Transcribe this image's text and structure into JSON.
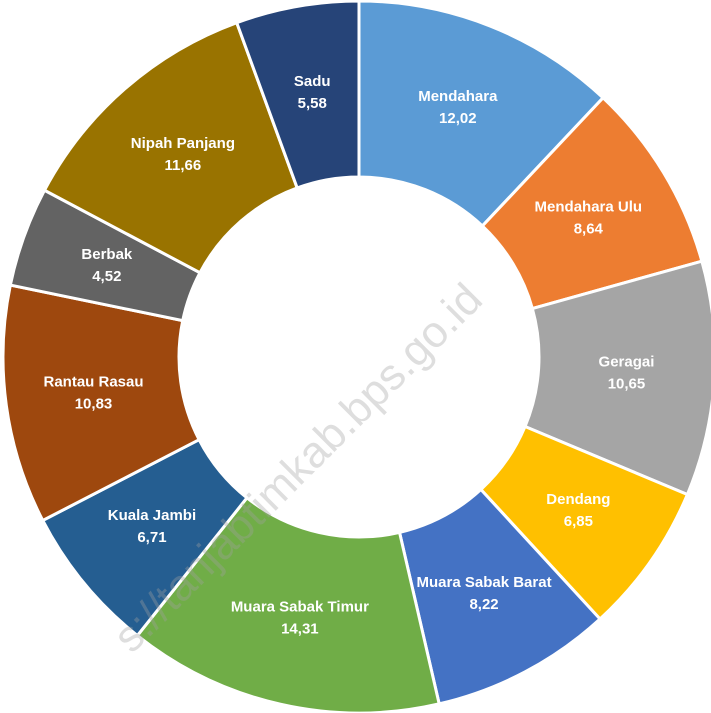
{
  "chart_data": {
    "type": "donut",
    "categories": [
      "Mendahara",
      "Mendahara Ulu",
      "Geragai",
      "Dendang",
      "Muara Sabak Barat",
      "Muara Sabak Timur",
      "Kuala Jambi",
      "Rantau Rasau",
      "Berbak",
      "Nipah Panjang",
      "Sadu"
    ],
    "values": [
      12.02,
      8.64,
      10.65,
      6.85,
      8.22,
      14.31,
      6.71,
      10.83,
      4.52,
      11.66,
      5.58
    ],
    "value_labels": [
      "12,02",
      "8,64",
      "10,65",
      "6,85",
      "8,22",
      "14,31",
      "6,71",
      "10,83",
      "4,52",
      "11,66",
      "5,58"
    ],
    "colors": [
      "#5b9bd5",
      "#ed7d31",
      "#a5a5a5",
      "#ffc000",
      "#4472c4",
      "#70ad47",
      "#255e91",
      "#9e480e",
      "#636363",
      "#997300",
      "#264478"
    ],
    "watermark": "s://tanjabtimkab.bps.go.id"
  }
}
